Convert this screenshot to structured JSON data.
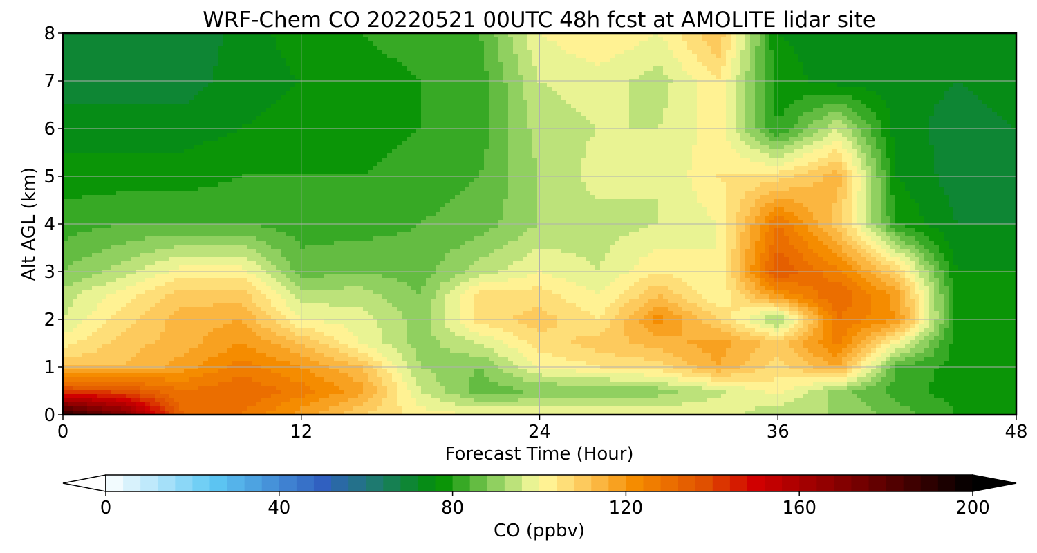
{
  "chart_data": {
    "type": "heatmap",
    "title": "WRF-Chem CO  20220521 00UTC 48h fcst at AMOLITE lidar site",
    "xlabel": "Forecast Time (Hour)",
    "ylabel": "Alt AGL (km)",
    "xlim": [
      0,
      48
    ],
    "ylim": [
      0,
      8
    ],
    "xticks": [
      0,
      12,
      24,
      36,
      48
    ],
    "yticks": [
      0,
      1,
      2,
      3,
      4,
      5,
      6,
      7,
      8
    ],
    "grid": true,
    "x": [
      0,
      3,
      6,
      9,
      12,
      15,
      18,
      21,
      24,
      27,
      30,
      33,
      36,
      39,
      42,
      45,
      48
    ],
    "y": [
      0,
      0.5,
      1,
      1.5,
      2,
      2.5,
      3,
      4,
      5,
      6,
      7,
      8
    ],
    "z": [
      [
        192,
        172,
        132,
        128,
        118,
        108,
        102,
        100,
        99,
        99,
        99,
        99,
        92,
        92,
        86,
        80,
        80
      ],
      [
        140,
        138,
        128,
        132,
        126,
        118,
        96,
        86,
        88,
        88,
        90,
        95,
        102,
        90,
        82,
        78,
        78
      ],
      [
        112,
        112,
        118,
        126,
        120,
        112,
        92,
        88,
        100,
        104,
        106,
        116,
        106,
        116,
        84,
        78,
        78
      ],
      [
        102,
        110,
        114,
        120,
        112,
        100,
        90,
        96,
        106,
        110,
        114,
        118,
        110,
        125,
        100,
        78,
        78
      ],
      [
        96,
        106,
        114,
        116,
        100,
        98,
        90,
        106,
        110,
        104,
        122,
        108,
        90,
        128,
        120,
        78,
        78
      ],
      [
        94,
        102,
        110,
        110,
        94,
        94,
        88,
        106,
        106,
        100,
        112,
        100,
        120,
        132,
        118,
        78,
        78
      ],
      [
        88,
        94,
        102,
        102,
        86,
        88,
        86,
        94,
        100,
        96,
        104,
        100,
        136,
        125,
        108,
        76,
        76
      ],
      [
        82,
        84,
        84,
        84,
        82,
        82,
        84,
        86,
        92,
        94,
        96,
        100,
        128,
        110,
        80,
        72,
        72
      ],
      [
        78,
        78,
        78,
        80,
        80,
        80,
        82,
        84,
        92,
        98,
        96,
        104,
        106,
        114,
        76,
        70,
        70
      ],
      [
        74,
        74,
        74,
        76,
        78,
        78,
        80,
        82,
        94,
        96,
        96,
        102,
        80,
        96,
        74,
        70,
        72
      ],
      [
        70,
        70,
        70,
        74,
        76,
        78,
        80,
        82,
        96,
        98,
        94,
        104,
        78,
        74,
        74,
        72,
        74
      ],
      [
        72,
        68,
        68,
        74,
        78,
        80,
        82,
        84,
        100,
        104,
        100,
        112,
        76,
        74,
        74,
        74,
        76
      ]
    ],
    "colorbar": {
      "label": "CO  (ppbv)",
      "min": 0,
      "max": 200,
      "ticks": [
        0,
        40,
        80,
        120,
        160,
        200
      ],
      "extend": "both",
      "stops": [
        {
          "v": 0,
          "c": "#ffffff"
        },
        {
          "v": 25,
          "c": "#5ec8f4"
        },
        {
          "v": 50,
          "c": "#3060c0"
        },
        {
          "v": 62,
          "c": "#1e7a70"
        },
        {
          "v": 77,
          "c": "#009000"
        },
        {
          "v": 90,
          "c": "#90d060"
        },
        {
          "v": 100,
          "c": "#fffca0"
        },
        {
          "v": 112,
          "c": "#fcc050"
        },
        {
          "v": 122,
          "c": "#f58c00"
        },
        {
          "v": 138,
          "c": "#e05000"
        },
        {
          "v": 150,
          "c": "#d00000"
        },
        {
          "v": 175,
          "c": "#700000"
        },
        {
          "v": 200,
          "c": "#000000"
        }
      ]
    }
  }
}
